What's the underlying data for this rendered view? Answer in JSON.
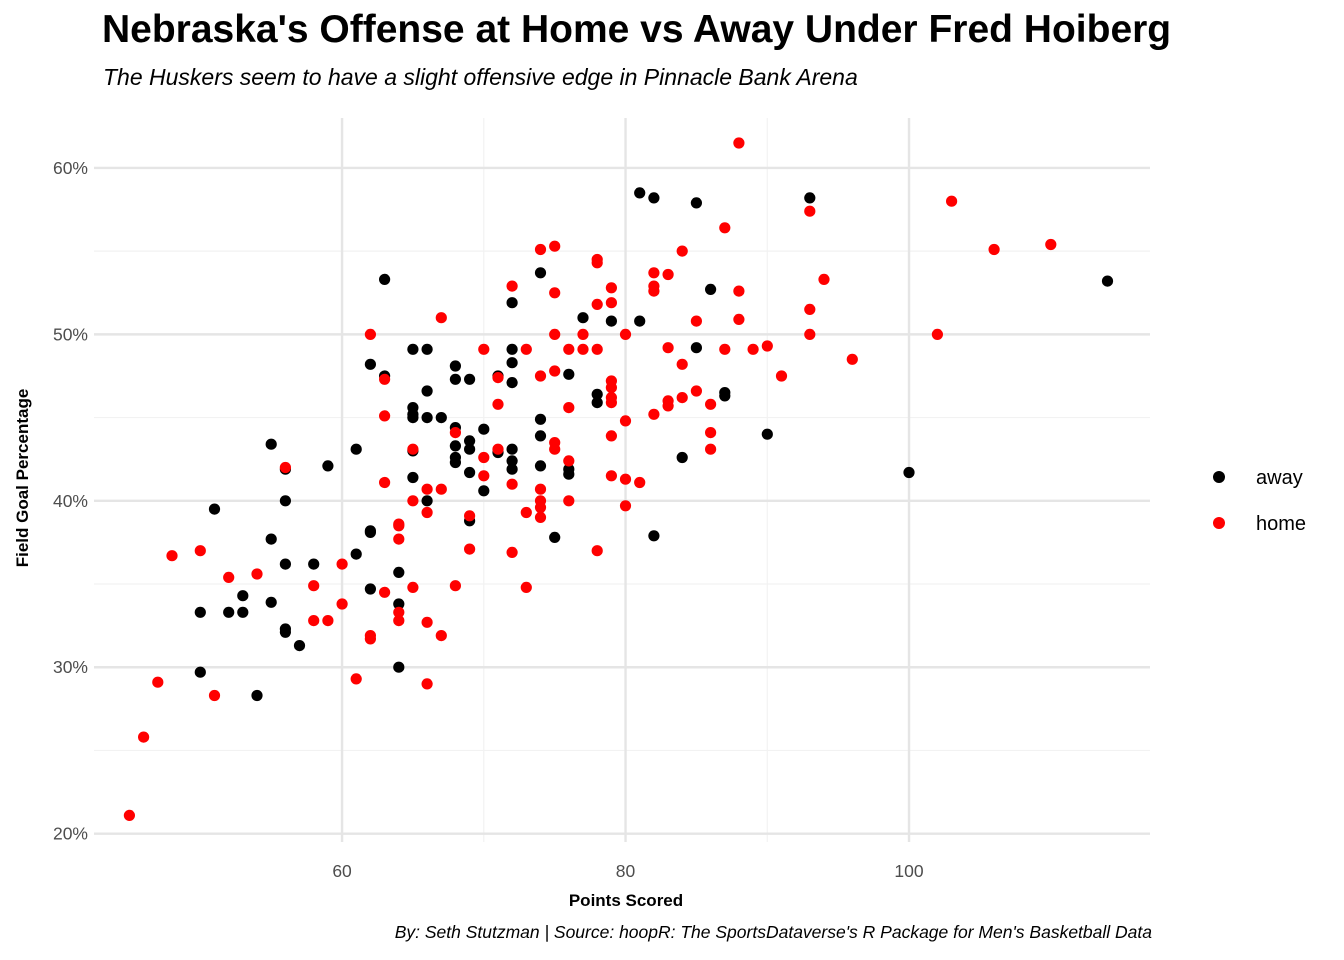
{
  "chart_data": {
    "type": "scatter",
    "title": "Nebraska's Offense at Home vs Away Under Fred Hoiberg",
    "subtitle": "The Huskers seem to have a slight offensive edge in Pinnacle Bank Arena",
    "caption": "By: Seth Stutzman | Source: hoopR: The SportsDataverse's R Package for Men's Basketball Data",
    "xlabel": "Points Scored",
    "ylabel": "Field Goal Percentage",
    "xlim": [
      42.5,
      117
    ],
    "ylim": [
      19.5,
      63
    ],
    "x_ticks": [
      {
        "value": 60,
        "label": "60"
      },
      {
        "value": 80,
        "label": "80"
      },
      {
        "value": 100,
        "label": "100"
      }
    ],
    "y_ticks": [
      {
        "value": 20,
        "label": "20%"
      },
      {
        "value": 30,
        "label": "30%"
      },
      {
        "value": 40,
        "label": "40%"
      },
      {
        "value": 50,
        "label": "50%"
      },
      {
        "value": 60,
        "label": "60%"
      }
    ],
    "grid": true,
    "legend_position": "right",
    "series": [
      {
        "name": "away",
        "color": "#000000",
        "points": [
          [
            50,
            33.3
          ],
          [
            50,
            29.7
          ],
          [
            51,
            39.5
          ],
          [
            52,
            33.3
          ],
          [
            53,
            34.3
          ],
          [
            53,
            33.3
          ],
          [
            54,
            28.3
          ],
          [
            55,
            43.4
          ],
          [
            55,
            37.7
          ],
          [
            55,
            33.9
          ],
          [
            56,
            41.9
          ],
          [
            56,
            40.0
          ],
          [
            56,
            36.2
          ],
          [
            56,
            32.3
          ],
          [
            56,
            32.1
          ],
          [
            57,
            31.3
          ],
          [
            58,
            36.2
          ],
          [
            59,
            42.1
          ],
          [
            61,
            43.1
          ],
          [
            61,
            36.8
          ],
          [
            62,
            48.2
          ],
          [
            62,
            38.2
          ],
          [
            62,
            38.1
          ],
          [
            62,
            34.7
          ],
          [
            63,
            53.3
          ],
          [
            63,
            47.5
          ],
          [
            64,
            35.7
          ],
          [
            64,
            33.8
          ],
          [
            64,
            30.0
          ],
          [
            65,
            49.1
          ],
          [
            65,
            45.6
          ],
          [
            65,
            45.2
          ],
          [
            65,
            45.0
          ],
          [
            65,
            43.0
          ],
          [
            65,
            41.4
          ],
          [
            66,
            49.1
          ],
          [
            66,
            46.6
          ],
          [
            66,
            45.0
          ],
          [
            66,
            40.0
          ],
          [
            67,
            45.0
          ],
          [
            68,
            48.1
          ],
          [
            68,
            47.3
          ],
          [
            68,
            44.4
          ],
          [
            68,
            43.3
          ],
          [
            68,
            42.6
          ],
          [
            68,
            42.3
          ],
          [
            69,
            47.3
          ],
          [
            69,
            43.6
          ],
          [
            69,
            43.1
          ],
          [
            69,
            41.7
          ],
          [
            69,
            38.8
          ],
          [
            70,
            44.3
          ],
          [
            70,
            40.6
          ],
          [
            71,
            47.5
          ],
          [
            71,
            42.9
          ],
          [
            72,
            51.9
          ],
          [
            72,
            49.1
          ],
          [
            72,
            48.3
          ],
          [
            72,
            47.1
          ],
          [
            72,
            43.1
          ],
          [
            72,
            42.4
          ],
          [
            72,
            41.9
          ],
          [
            74,
            53.7
          ],
          [
            74,
            44.9
          ],
          [
            74,
            43.9
          ],
          [
            74,
            42.1
          ],
          [
            75,
            37.8
          ],
          [
            76,
            47.6
          ],
          [
            76,
            41.9
          ],
          [
            76,
            41.6
          ],
          [
            77,
            51.0
          ],
          [
            78,
            46.4
          ],
          [
            78,
            45.9
          ],
          [
            79,
            50.8
          ],
          [
            81,
            58.5
          ],
          [
            81,
            50.8
          ],
          [
            82,
            58.2
          ],
          [
            82,
            37.9
          ],
          [
            84,
            42.6
          ],
          [
            85,
            57.9
          ],
          [
            85,
            49.2
          ],
          [
            86,
            52.7
          ],
          [
            87,
            46.5
          ],
          [
            87,
            46.3
          ],
          [
            90,
            44.0
          ],
          [
            93,
            58.2
          ],
          [
            100,
            41.7
          ],
          [
            114,
            53.2
          ]
        ]
      },
      {
        "name": "home",
        "color": "#ff0000",
        "points": [
          [
            45,
            21.1
          ],
          [
            46,
            25.8
          ],
          [
            47,
            29.1
          ],
          [
            48,
            36.7
          ],
          [
            50,
            37.0
          ],
          [
            51,
            28.3
          ],
          [
            52,
            35.4
          ],
          [
            54,
            35.6
          ],
          [
            56,
            42.0
          ],
          [
            58,
            34.9
          ],
          [
            58,
            32.8
          ],
          [
            59,
            32.8
          ],
          [
            60,
            36.2
          ],
          [
            60,
            33.8
          ],
          [
            61,
            29.3
          ],
          [
            62,
            50.0
          ],
          [
            62,
            31.9
          ],
          [
            62,
            31.7
          ],
          [
            63,
            47.3
          ],
          [
            63,
            45.1
          ],
          [
            63,
            41.1
          ],
          [
            63,
            34.5
          ],
          [
            64,
            38.6
          ],
          [
            64,
            38.5
          ],
          [
            64,
            37.7
          ],
          [
            64,
            33.3
          ],
          [
            64,
            32.8
          ],
          [
            65,
            43.1
          ],
          [
            65,
            40.0
          ],
          [
            65,
            34.8
          ],
          [
            66,
            40.7
          ],
          [
            66,
            39.3
          ],
          [
            66,
            32.7
          ],
          [
            66,
            29.0
          ],
          [
            67,
            51.0
          ],
          [
            67,
            40.7
          ],
          [
            67,
            31.9
          ],
          [
            68,
            44.1
          ],
          [
            68,
            34.9
          ],
          [
            69,
            39.1
          ],
          [
            69,
            37.1
          ],
          [
            70,
            49.1
          ],
          [
            70,
            42.6
          ],
          [
            70,
            41.5
          ],
          [
            71,
            47.4
          ],
          [
            71,
            45.8
          ],
          [
            71,
            43.1
          ],
          [
            72,
            52.9
          ],
          [
            72,
            41.0
          ],
          [
            72,
            36.9
          ],
          [
            73,
            49.1
          ],
          [
            73,
            39.3
          ],
          [
            73,
            34.8
          ],
          [
            74,
            55.1
          ],
          [
            74,
            47.5
          ],
          [
            74,
            40.7
          ],
          [
            74,
            40.0
          ],
          [
            74,
            39.6
          ],
          [
            74,
            39.0
          ],
          [
            75,
            55.3
          ],
          [
            75,
            52.5
          ],
          [
            75,
            50.0
          ],
          [
            75,
            47.8
          ],
          [
            75,
            43.5
          ],
          [
            75,
            43.1
          ],
          [
            76,
            49.1
          ],
          [
            76,
            45.6
          ],
          [
            76,
            42.4
          ],
          [
            76,
            40.0
          ],
          [
            77,
            50.0
          ],
          [
            77,
            49.1
          ],
          [
            78,
            54.5
          ],
          [
            78,
            54.3
          ],
          [
            78,
            51.8
          ],
          [
            78,
            49.1
          ],
          [
            78,
            37.0
          ],
          [
            79,
            52.8
          ],
          [
            79,
            51.9
          ],
          [
            79,
            47.2
          ],
          [
            79,
            46.8
          ],
          [
            79,
            46.2
          ],
          [
            79,
            45.9
          ],
          [
            79,
            43.9
          ],
          [
            79,
            41.5
          ],
          [
            80,
            50.0
          ],
          [
            80,
            44.8
          ],
          [
            80,
            41.3
          ],
          [
            80,
            39.7
          ],
          [
            81,
            41.1
          ],
          [
            82,
            53.7
          ],
          [
            82,
            52.9
          ],
          [
            82,
            52.6
          ],
          [
            82,
            45.2
          ],
          [
            83,
            53.6
          ],
          [
            83,
            49.2
          ],
          [
            83,
            46.0
          ],
          [
            83,
            45.7
          ],
          [
            84,
            55.0
          ],
          [
            84,
            48.2
          ],
          [
            84,
            46.2
          ],
          [
            85,
            50.8
          ],
          [
            85,
            46.6
          ],
          [
            86,
            45.8
          ],
          [
            86,
            44.1
          ],
          [
            86,
            43.1
          ],
          [
            87,
            56.4
          ],
          [
            87,
            49.1
          ],
          [
            88,
            61.5
          ],
          [
            88,
            52.6
          ],
          [
            88,
            50.9
          ],
          [
            89,
            49.1
          ],
          [
            90,
            49.3
          ],
          [
            91,
            47.5
          ],
          [
            93,
            57.4
          ],
          [
            93,
            51.5
          ],
          [
            93,
            50.0
          ],
          [
            94,
            53.3
          ],
          [
            96,
            48.5
          ],
          [
            102,
            50.0
          ],
          [
            103,
            58.0
          ],
          [
            106,
            55.1
          ],
          [
            110,
            55.4
          ]
        ]
      }
    ]
  }
}
